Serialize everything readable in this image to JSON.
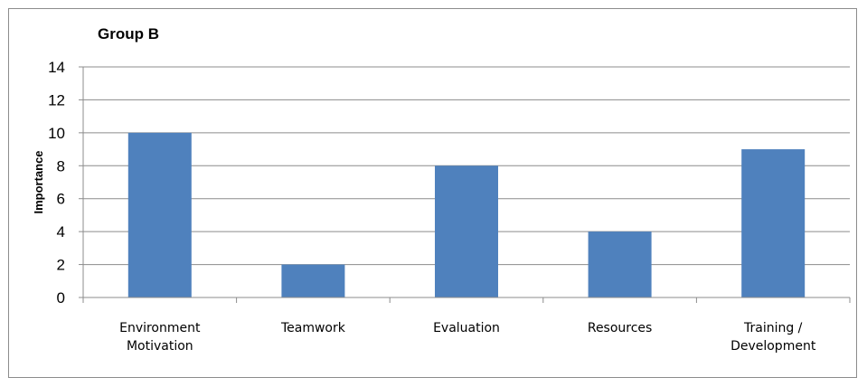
{
  "chart_data": {
    "type": "bar",
    "title": "Group B",
    "xlabel": "",
    "ylabel": "Importance",
    "categories": [
      [
        "Environment",
        "Motivation"
      ],
      [
        "Teamwork"
      ],
      [
        "Evaluation"
      ],
      [
        "Resources"
      ],
      [
        "Training /",
        "Development"
      ]
    ],
    "values": [
      10,
      2,
      8,
      4,
      9
    ],
    "ylim": [
      0,
      14
    ],
    "yticks": [
      "0",
      "2",
      "4",
      "6",
      "8",
      "10",
      "12",
      "14"
    ],
    "grid": true,
    "legend": "none",
    "colors": {
      "bar": "#4F81BD",
      "grid": "#8c8c8c",
      "axis": "#8c8c8c"
    }
  }
}
